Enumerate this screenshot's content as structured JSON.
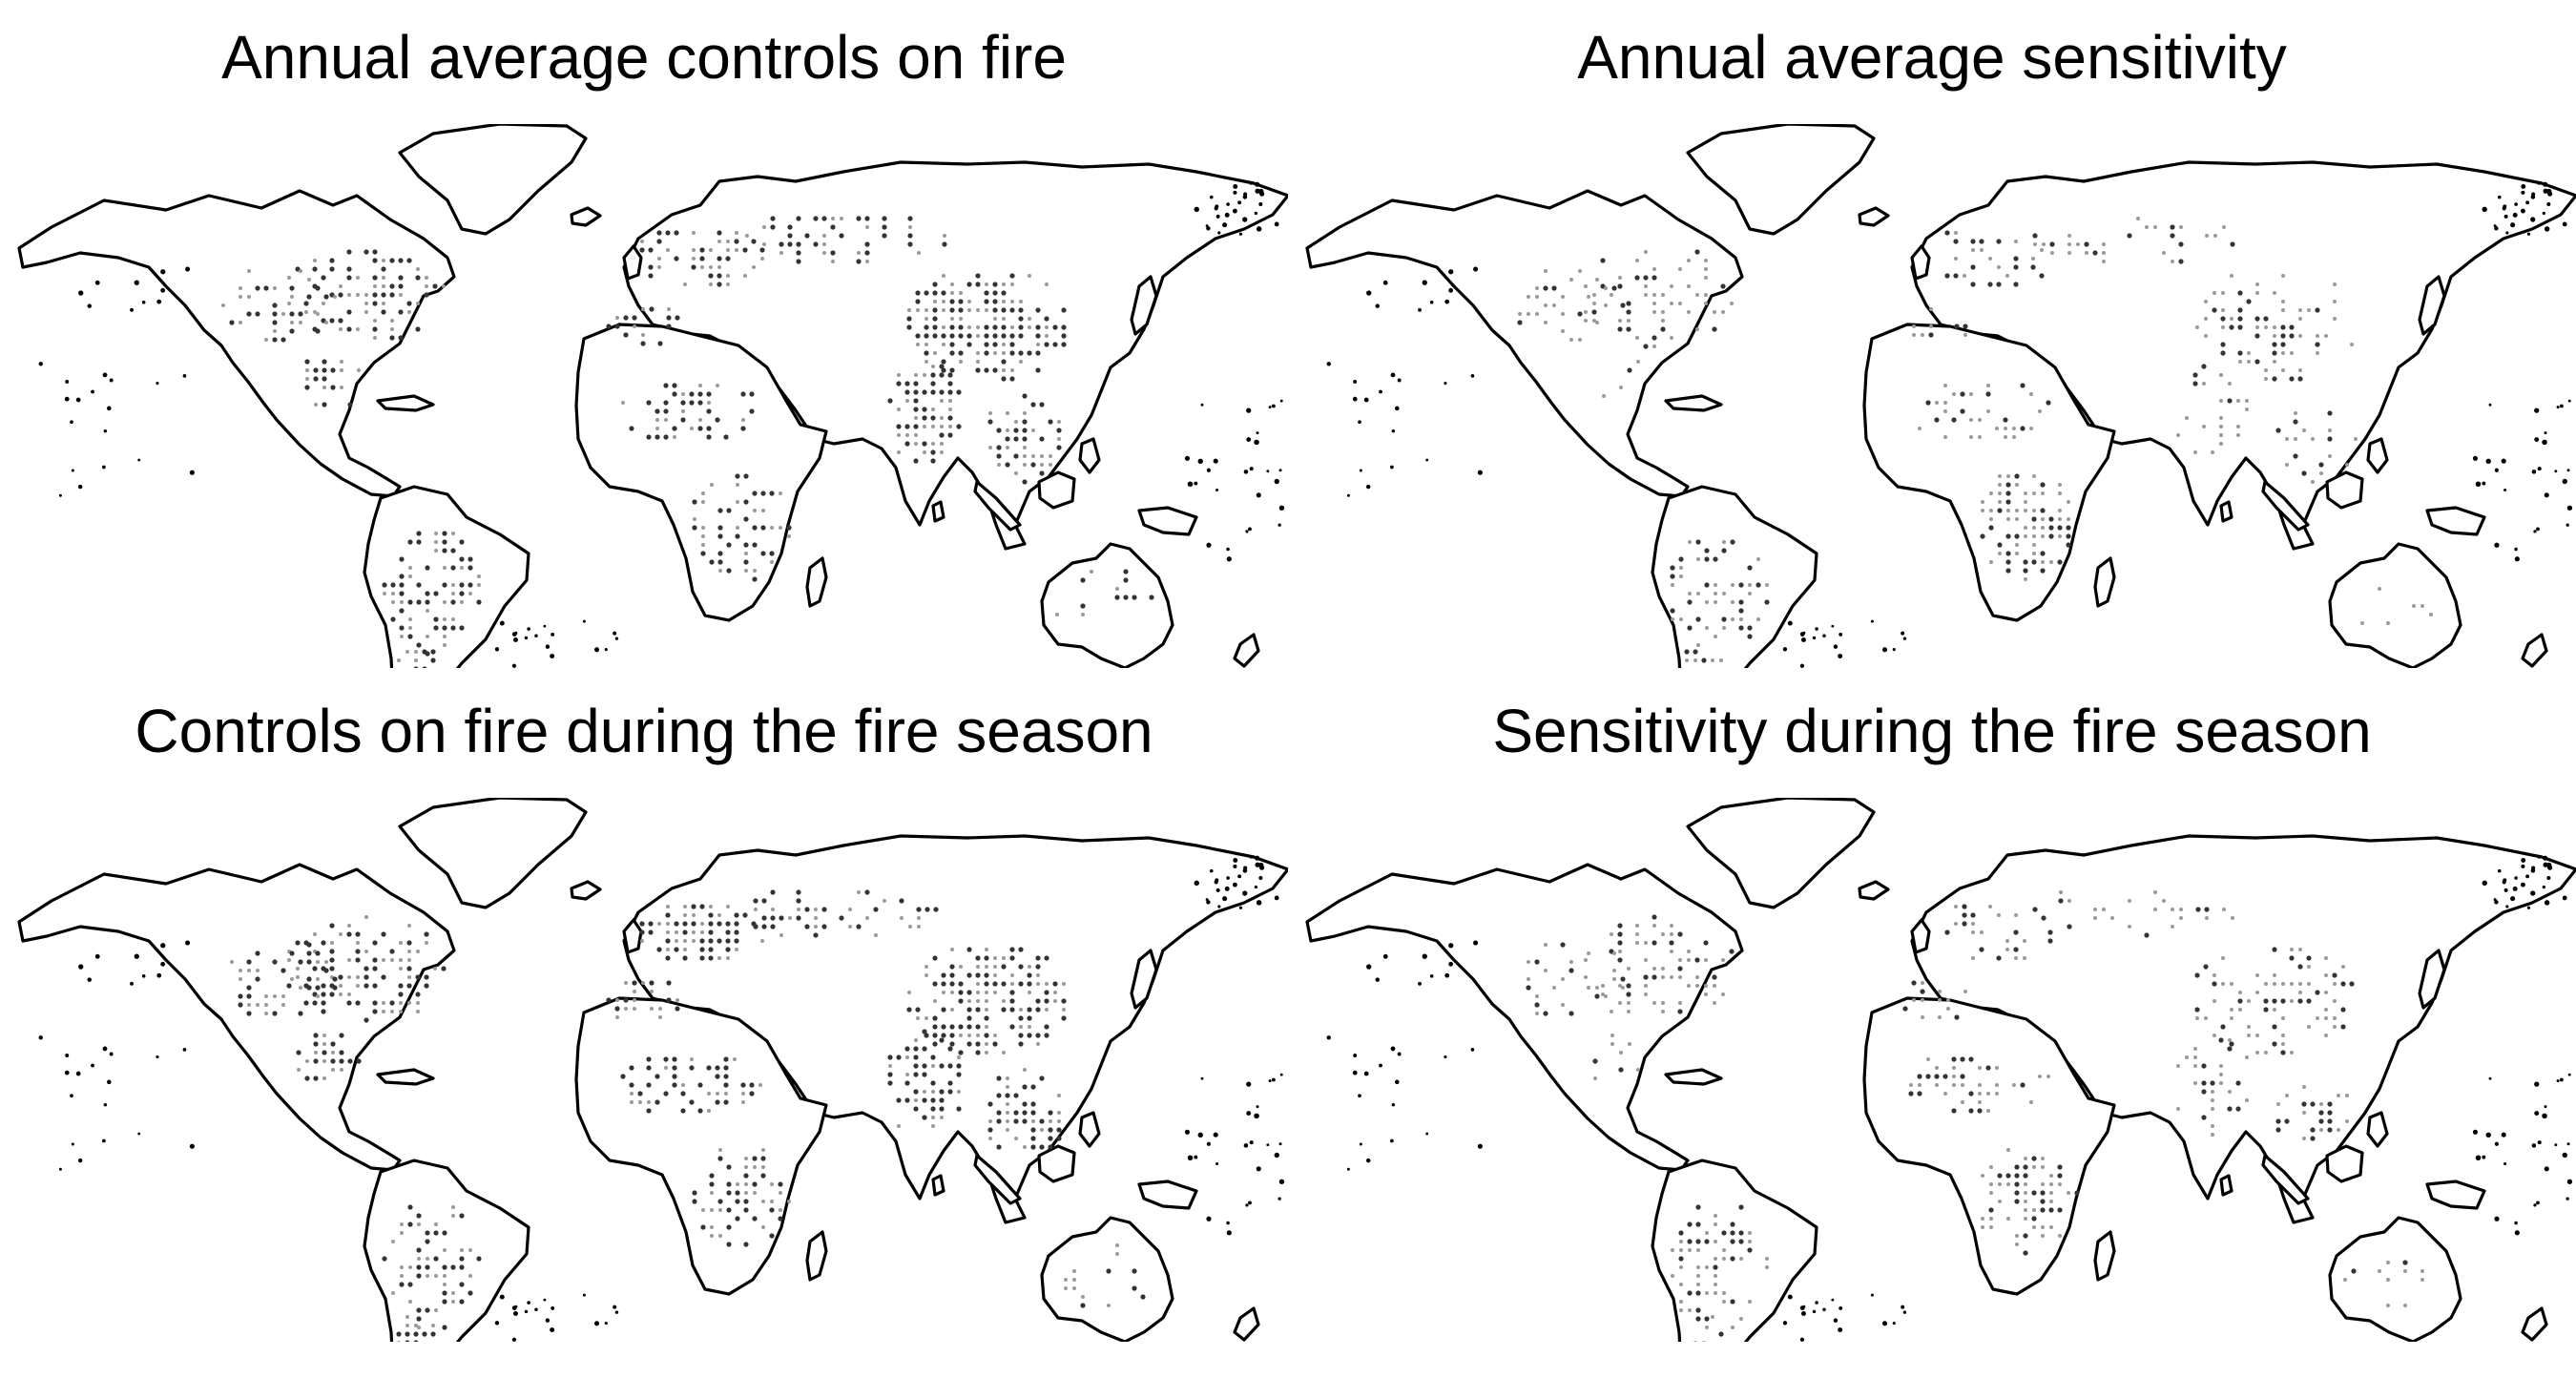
{
  "figure": {
    "panels": [
      {
        "title": "Annual average controls on fire",
        "variant": "controls",
        "season": "annual"
      },
      {
        "title": "Annual average sensitivity",
        "variant": "sensitivity",
        "season": "annual"
      },
      {
        "title": "Controls on fire during the fire season",
        "variant": "controls",
        "season": "fire-season"
      },
      {
        "title": "Sensitivity during the fire season",
        "variant": "sensitivity",
        "season": "fire-season"
      }
    ],
    "colors": {
      "outline": "#000000",
      "dots_dark": "#333333",
      "dots_light": "#9a9a9a",
      "background": "#ffffff"
    }
  }
}
